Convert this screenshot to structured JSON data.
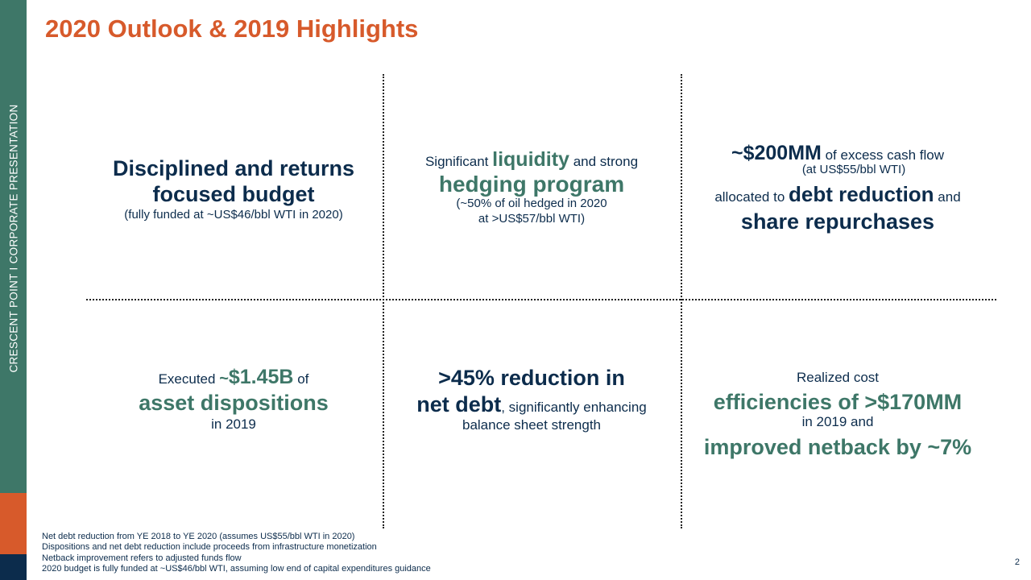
{
  "sidebar": {
    "label": "CRESCENT POINT   I   CORPORATE PRESENTATION"
  },
  "title": "2020 Outlook & 2019 Highlights",
  "cells": {
    "budget": {
      "line1": "Disciplined and returns",
      "line2": "focused budget",
      "note": "(fully funded at ~US$46/bbl WTI in 2020)"
    },
    "liquidity": {
      "pre": "Significant ",
      "highlight": "liquidity",
      "post": " and strong",
      "line2": "hedging program",
      "note1": "(~50% of oil hedged in 2020",
      "note2": "at >US$57/bbl WTI)"
    },
    "cashflow": {
      "amount": "~$200MM",
      "after_amount": " of excess cash flow",
      "note": "(at US$55/bbl WTI)",
      "pre2": "allocated to ",
      "highlight2": "debt reduction",
      "post2": " and",
      "line3": "share repurchases"
    },
    "dispositions": {
      "pre": "Executed ",
      "amount_prefix": "~",
      "amount": "$1.45B",
      "post": " of",
      "line2": "asset dispositions",
      "line3": "in 2019"
    },
    "netdebt": {
      "line1": ">45% reduction in",
      "highlight": "net debt",
      "post": ", significantly enhancing",
      "line3": "balance sheet strength"
    },
    "efficiencies": {
      "line1": "Realized cost",
      "line2": "efficiencies of >$170MM",
      "line3": "in 2019 and",
      "line4": "improved netback by ~7%"
    }
  },
  "footnotes": [
    "Net debt reduction from YE 2018 to YE 2020 (assumes US$55/bbl WTI in 2020)",
    "Dispositions and net debt reduction include proceeds from infrastructure monetization",
    "Netback improvement refers to adjusted funds flow",
    "2020 budget is fully funded at ~US$46/bbl WTI, assuming low end of capital expenditures guidance"
  ],
  "page_number": "2",
  "colors": {
    "accent_orange": "#d75a2b",
    "brand_green": "#3e7768",
    "navy": "#0c2c4c"
  }
}
